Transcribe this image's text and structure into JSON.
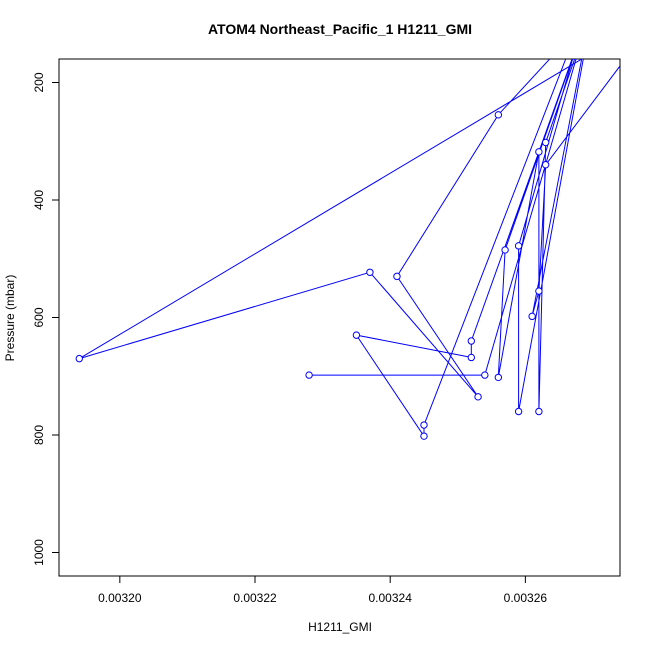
{
  "chart_data": {
    "type": "line",
    "title": "ATOM4 Northeast_Pacific_1 H1211_GMI",
    "xlabel": "H1211_GMI",
    "ylabel": "Pressure (mbar)",
    "xlim": [
      0.003191,
      0.003274
    ],
    "ylim": [
      1040,
      160
    ],
    "y_reversed": true,
    "x_ticks": [
      "0.00320",
      "0.00322",
      "0.00324",
      "0.00326"
    ],
    "y_ticks": [
      "200",
      "400",
      "600",
      "800",
      "1000"
    ],
    "grid": false,
    "legend": "none",
    "color": "#0000ff",
    "marker": "open-circle",
    "series": [
      {
        "points": [
          {
            "x": 0.003266,
            "y": 130
          },
          {
            "x": 0.003256,
            "y": 255
          },
          {
            "x": 0.003241,
            "y": 530
          },
          {
            "x": 0.003253,
            "y": 735
          },
          {
            "x": 0.003237,
            "y": 523
          },
          {
            "x": 0.003194,
            "y": 670
          },
          {
            "x": 0.00328,
            "y": 80
          },
          {
            "x": 0.003263,
            "y": 340
          },
          {
            "x": 0.003262,
            "y": 555
          },
          {
            "x": 0.003261,
            "y": 598
          },
          {
            "x": 0.00327,
            "y": 60
          },
          {
            "x": 0.003252,
            "y": 640
          },
          {
            "x": 0.003252,
            "y": 668
          },
          {
            "x": 0.003235,
            "y": 630
          },
          {
            "x": 0.003245,
            "y": 802
          },
          {
            "x": 0.003245,
            "y": 783
          },
          {
            "x": 0.00327,
            "y": 40
          },
          {
            "x": 0.003259,
            "y": 478
          },
          {
            "x": 0.003259,
            "y": 760
          },
          {
            "x": 0.00327,
            "y": 70
          },
          {
            "x": 0.003263,
            "y": 302
          },
          {
            "x": 0.003262,
            "y": 760
          },
          {
            "x": 0.003262,
            "y": 318
          },
          {
            "x": 0.003256,
            "y": 702
          },
          {
            "x": 0.003257,
            "y": 485
          },
          {
            "x": 0.00327,
            "y": 60
          },
          {
            "x": 0.003254,
            "y": 698
          },
          {
            "x": 0.003228,
            "y": 698
          }
        ]
      }
    ]
  }
}
